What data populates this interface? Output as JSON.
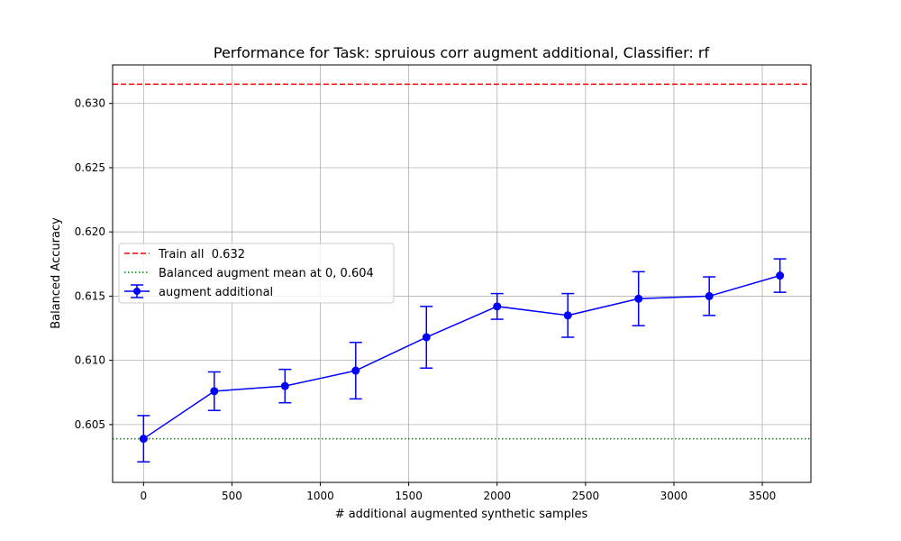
{
  "chart_data": {
    "type": "line",
    "title": "Performance for Task: spruious corr augment additional, Classifier: rf",
    "xlabel": "# additional augmented synthetic samples",
    "ylabel": "Balanced Accuracy",
    "xlim": [
      -175,
      3775
    ],
    "ylim": [
      0.6005,
      0.633
    ],
    "xticks": [
      0,
      500,
      1000,
      1500,
      2000,
      2500,
      3000,
      3500
    ],
    "yticks": [
      0.605,
      0.61,
      0.615,
      0.62,
      0.625,
      0.63
    ],
    "ytick_labels": [
      "0.605",
      "0.610",
      "0.615",
      "0.620",
      "0.625",
      "0.630"
    ],
    "grid": true,
    "legend_position": "center-left",
    "series": [
      {
        "name": "augment additional",
        "color": "#0000ff",
        "marker": "circle",
        "x": [
          0,
          400,
          800,
          1200,
          1600,
          2000,
          2400,
          2800,
          3200,
          3600
        ],
        "y": [
          0.6039,
          0.6076,
          0.608,
          0.6092,
          0.6118,
          0.6142,
          0.6135,
          0.6148,
          0.615,
          0.6166
        ],
        "yerr": [
          0.0018,
          0.0015,
          0.0013,
          0.0022,
          0.0024,
          0.001,
          0.0017,
          0.0021,
          0.0015,
          0.0013
        ]
      }
    ],
    "hlines": [
      {
        "name": "Train all  0.632",
        "y": 0.6315,
        "color": "#ff0000",
        "style": "dashed"
      },
      {
        "name": "Balanced augment mean at 0, 0.604",
        "y": 0.6039,
        "color": "#008000",
        "style": "dotted"
      }
    ]
  }
}
